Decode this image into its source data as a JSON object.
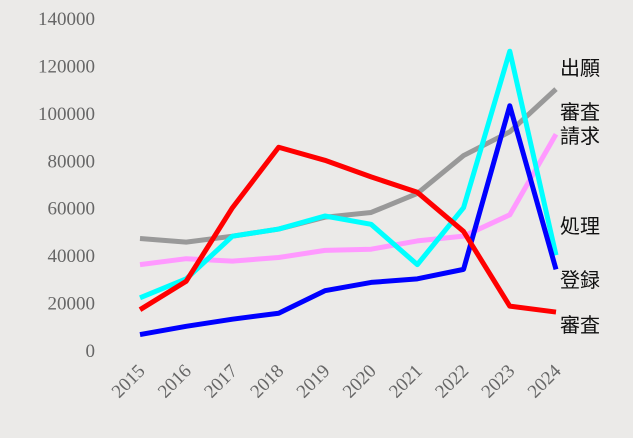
{
  "chart_data": {
    "type": "line",
    "x": [
      "2015",
      "2016",
      "2017",
      "2018",
      "2019",
      "2020",
      "2021",
      "2022",
      "2023",
      "2024"
    ],
    "ylim": [
      0,
      140000
    ],
    "yticks": [
      0,
      20000,
      40000,
      60000,
      80000,
      100000,
      120000,
      140000
    ],
    "series": [
      {
        "name": "出願",
        "color": "#999999",
        "values": [
          47000,
          45500,
          48000,
          51000,
          56000,
          58000,
          66000,
          82000,
          92000,
          110000
        ]
      },
      {
        "name": "審査請求",
        "color": "#ff99ff",
        "values": [
          36000,
          38500,
          37500,
          39000,
          42000,
          42500,
          46000,
          48000,
          57000,
          91000
        ]
      },
      {
        "name": "処理",
        "color": "#00ffff",
        "values": [
          22000,
          30000,
          48000,
          51000,
          56500,
          53000,
          36000,
          60000,
          126000,
          40000
        ]
      },
      {
        "name": "登録",
        "color": "#0000ff",
        "values": [
          6500,
          10000,
          13000,
          15500,
          25000,
          28500,
          30000,
          34000,
          103000,
          34000
        ]
      },
      {
        "name": "審査",
        "color": "#ff0000",
        "values": [
          17000,
          29000,
          60000,
          85500,
          80000,
          73000,
          66500,
          50000,
          18500,
          16000
        ]
      }
    ]
  }
}
